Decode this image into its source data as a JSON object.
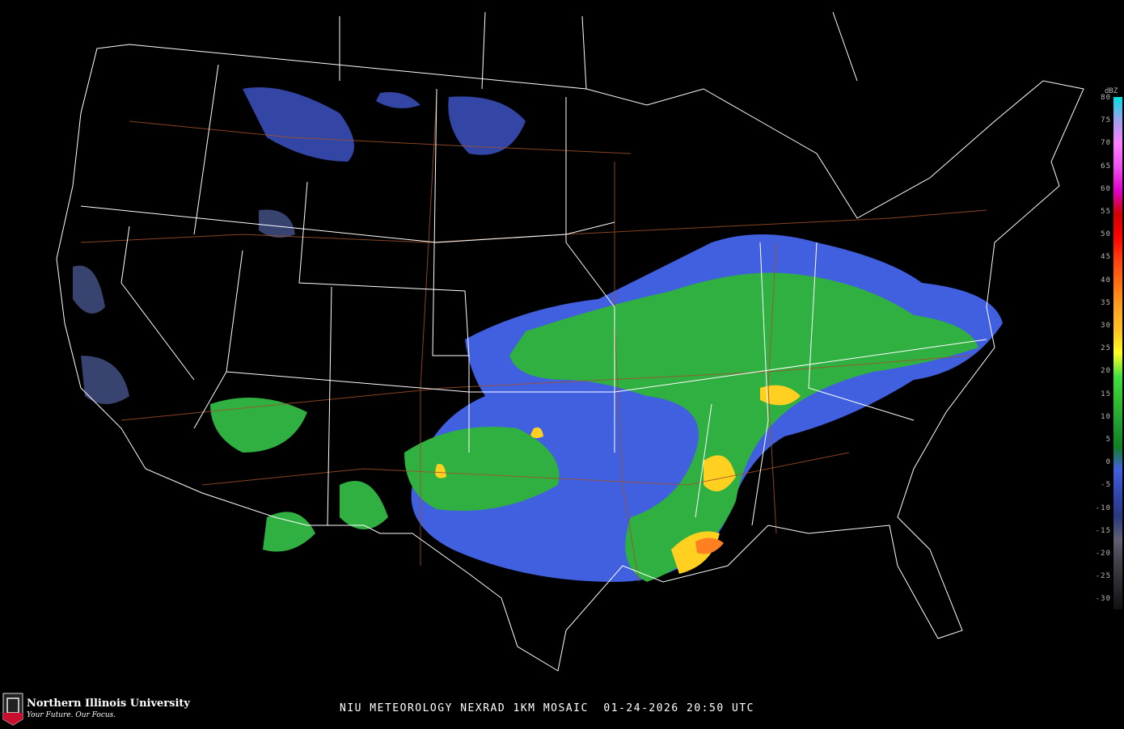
{
  "product": {
    "caption": "NIU METEOROLOGY NEXRAD 1KM MOSAIC  01-24-2026 20:50 UTC"
  },
  "branding": {
    "name": "Northern Illinois University",
    "tagline": "Your Future. Our Focus.",
    "shield_text": "NIU"
  },
  "legend": {
    "unit": "dBZ",
    "labels": [
      "80",
      "75",
      "70",
      "65",
      "60",
      "55",
      "50",
      "45",
      "40",
      "35",
      "30",
      "25",
      "20",
      "15",
      "10",
      "5",
      "0",
      "-5",
      "-10",
      "-15",
      "-20",
      "-25",
      "-30"
    ],
    "colors": [
      "#00e0e0",
      "#a0a0f0",
      "#ff80ff",
      "#f050f0",
      "#e000d0",
      "#d00000",
      "#ff0000",
      "#ff4010",
      "#ff7010",
      "#ffa020",
      "#ffc020",
      "#ffff20",
      "#40e040",
      "#30c030",
      "#20a030",
      "#108020",
      "#4060e0",
      "#3048b0",
      "#283880",
      "#606070",
      "#404048",
      "#282830",
      "#101010"
    ]
  },
  "map": {
    "background": "#000000",
    "border_color": "#ffffff",
    "road_color": "#a0502a"
  }
}
